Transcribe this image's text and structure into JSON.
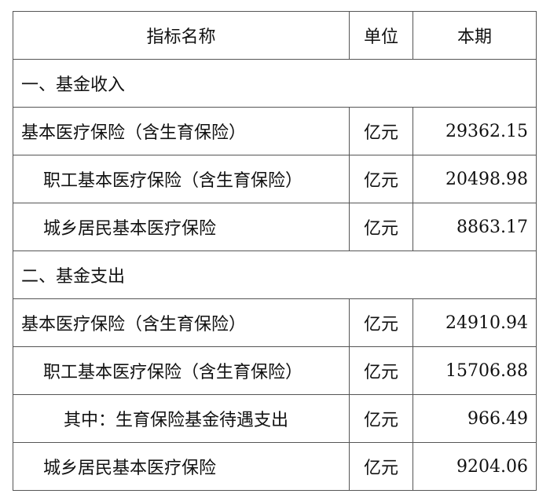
{
  "header": {
    "name": "指标名称",
    "unit": "单位",
    "current": "本期"
  },
  "sections": [
    {
      "title": "一、基金收入",
      "rows": [
        {
          "name": "基本医疗保险（含生育保险）",
          "unit": "亿元",
          "value": "29362.15",
          "indent": 0
        },
        {
          "name": "职工基本医疗保险（含生育保险）",
          "unit": "亿元",
          "value": "20498.98",
          "indent": 1
        },
        {
          "name": "城乡居民基本医疗保险",
          "unit": "亿元",
          "value": "8863.17",
          "indent": 1
        }
      ]
    },
    {
      "title": "二、基金支出",
      "rows": [
        {
          "name": "基本医疗保险（含生育保险）",
          "unit": "亿元",
          "value": "24910.94",
          "indent": 0
        },
        {
          "name": "职工基本医疗保险（含生育保险）",
          "unit": "亿元",
          "value": "15706.88",
          "indent": 1
        },
        {
          "name": "其中：生育保险基金待遇支出",
          "unit": "亿元",
          "value": "966.49",
          "indent": 2
        },
        {
          "name": "城乡居民基本医疗保险",
          "unit": "亿元",
          "value": "9204.06",
          "indent": 1
        }
      ]
    }
  ]
}
